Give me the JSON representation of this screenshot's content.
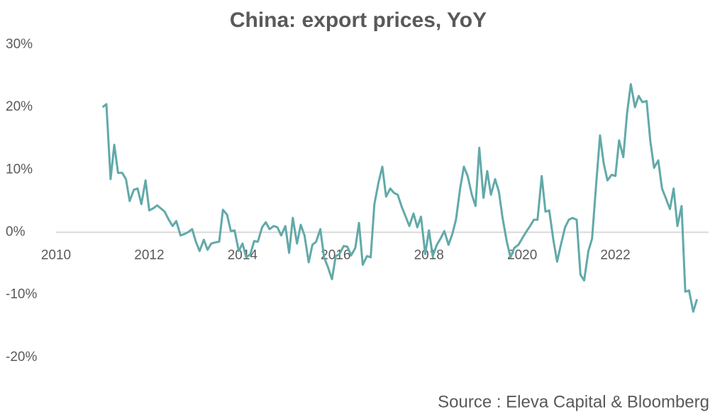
{
  "chart_data": {
    "type": "line",
    "title": "China: export prices, YoY",
    "source": "Source : Eleva Capital & Bloomberg",
    "xlim": [
      2010,
      2024
    ],
    "xticks": [
      2010,
      2012,
      2014,
      2016,
      2018,
      2020,
      2022
    ],
    "ylim": [
      -25,
      30
    ],
    "yticks": [
      {
        "value": 30,
        "label": "30%"
      },
      {
        "value": 20,
        "label": "20%"
      },
      {
        "value": 10,
        "label": "10%"
      },
      {
        "value": 0,
        "label": "0%"
      },
      {
        "value": -10,
        "label": "-10%"
      },
      {
        "value": -20,
        "label": "-20%"
      }
    ],
    "x": [
      2011,
      2011.08,
      2011.17,
      2011.25,
      2011.33,
      2011.42,
      2011.5,
      2011.58,
      2011.67,
      2011.75,
      2011.83,
      2011.92,
      2012,
      2012.08,
      2012.17,
      2012.25,
      2012.33,
      2012.42,
      2012.5,
      2012.58,
      2012.67,
      2012.75,
      2012.83,
      2012.92,
      2013,
      2013.08,
      2013.17,
      2013.25,
      2013.33,
      2013.42,
      2013.5,
      2013.58,
      2013.67,
      2013.75,
      2013.83,
      2013.92,
      2014,
      2014.08,
      2014.17,
      2014.25,
      2014.33,
      2014.42,
      2014.5,
      2014.58,
      2014.67,
      2014.75,
      2014.83,
      2014.92,
      2015,
      2015.08,
      2015.17,
      2015.25,
      2015.33,
      2015.42,
      2015.5,
      2015.58,
      2015.67,
      2015.75,
      2015.83,
      2015.92,
      2016,
      2016.08,
      2016.17,
      2016.25,
      2016.33,
      2016.42,
      2016.5,
      2016.58,
      2016.67,
      2016.75,
      2016.83,
      2016.92,
      2017,
      2017.08,
      2017.17,
      2017.25,
      2017.33,
      2017.42,
      2017.5,
      2017.58,
      2017.67,
      2017.75,
      2017.83,
      2017.92,
      2018,
      2018.08,
      2018.17,
      2018.25,
      2018.33,
      2018.42,
      2018.5,
      2018.58,
      2018.67,
      2018.75,
      2018.83,
      2018.92,
      2019,
      2019.08,
      2019.17,
      2019.25,
      2019.33,
      2019.42,
      2019.5,
      2019.58,
      2019.67,
      2019.75,
      2019.83,
      2019.92,
      2020,
      2020.08,
      2020.17,
      2020.25,
      2020.33,
      2020.42,
      2020.5,
      2020.58,
      2020.67,
      2020.75,
      2020.83,
      2020.92,
      2021,
      2021.08,
      2021.17,
      2021.25,
      2021.33,
      2021.42,
      2021.5,
      2021.58,
      2021.67,
      2021.75,
      2021.83,
      2021.92,
      2022,
      2022.08,
      2022.17,
      2022.25,
      2022.33,
      2022.42,
      2022.5,
      2022.58,
      2022.67,
      2022.75,
      2022.83,
      2022.92,
      2023,
      2023.08,
      2023.17,
      2023.25,
      2023.33,
      2023.42,
      2023.5,
      2023.58,
      2023.67,
      2023.75
    ],
    "series": [
      {
        "name": "China export prices YoY",
        "color": "#62a9a9",
        "values": [
          20,
          20.5,
          8.5,
          14,
          9.5,
          9.5,
          8.5,
          5,
          6.8,
          7,
          4.5,
          8.3,
          3.5,
          3.8,
          4.3,
          3.8,
          3.3,
          2,
          1,
          1.8,
          -0.5,
          -0.3,
          0,
          0.5,
          -1.5,
          -3,
          -1.2,
          -2.8,
          -1.8,
          -1.6,
          -1.5,
          3.6,
          2.8,
          0.2,
          0.3,
          -3,
          -1.8,
          -4,
          -3.5,
          -1.4,
          -1.5,
          0.8,
          1.6,
          0.5,
          1,
          0.8,
          -0.5,
          1,
          -3.3,
          2.3,
          -1.8,
          1.2,
          -0.5,
          -4.8,
          -2,
          -1.5,
          0.5,
          -4,
          -5.5,
          -7.5,
          -3.8,
          -3.5,
          -2.2,
          -2.3,
          -3.7,
          -2.5,
          1.5,
          -5.2,
          -3.8,
          -4,
          4.5,
          8,
          10.5,
          5.7,
          7,
          6.3,
          6,
          4,
          2.5,
          1,
          3,
          0.8,
          2.5,
          -3.5,
          0.3,
          -3.8,
          -2,
          -1,
          0.2,
          -2,
          -0.3,
          2,
          7,
          10.5,
          9,
          6,
          4.2,
          13.5,
          5.5,
          9.8,
          6,
          8.5,
          6.5,
          2.3,
          -1.5,
          -4,
          -2.5,
          -2,
          -1,
          0,
          1,
          2,
          2,
          9,
          3.3,
          3.5,
          -1.3,
          -4.7,
          -2,
          0.8,
          2,
          2.3,
          2,
          -6.8,
          -7.7,
          -3,
          -1,
          7,
          15.5,
          11,
          8.3,
          9.2,
          9,
          14.7,
          12,
          19,
          23.7,
          20,
          21.8,
          20.8,
          21,
          14.5,
          10.3,
          11.5,
          7,
          5.5,
          3.7,
          7,
          1,
          4.2,
          -9.5,
          -9.3,
          -12.7,
          -10.7
        ]
      }
    ]
  }
}
